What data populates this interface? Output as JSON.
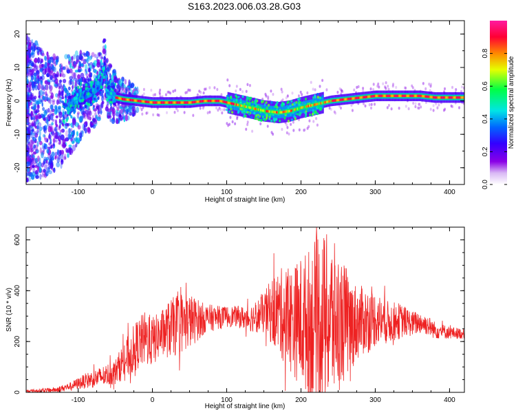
{
  "title": "S163.2023.006.03.28.G03",
  "chart_data": [
    {
      "type": "heatmap",
      "xlabel": "Height of straight line (km)",
      "ylabel": "Frequency (Hz)",
      "xlim": [
        -170,
        420
      ],
      "ylim": [
        -25,
        24
      ],
      "xticks": [
        -100,
        0,
        100,
        200,
        300,
        400
      ],
      "yticks": [
        -20,
        -10,
        0,
        10,
        20
      ],
      "colorbar": {
        "label": "Normalized spectral amplitude",
        "range": [
          0,
          1
        ],
        "ticks": [
          0.0,
          0.2,
          0.4,
          0.6,
          0.8
        ],
        "tick_labels": [
          "0.0",
          "0.2",
          "0.4",
          "0.6",
          "0.8"
        ],
        "colormap": [
          "#ffffff",
          "#d9b8f5",
          "#8a00e6",
          "#3300ff",
          "#0066ff",
          "#00e5e5",
          "#00ff44",
          "#e5ff00",
          "#ff8800",
          "#ff0033",
          "#ff1aa0"
        ]
      },
      "ridge": {
        "x": [
          -165,
          -140,
          -120,
          -100,
          -90,
          -80,
          -70,
          -65,
          -60,
          -50,
          -40,
          -20,
          0,
          20,
          50,
          70,
          90,
          110,
          130,
          150,
          170,
          185,
          200,
          220,
          240,
          260,
          280,
          300,
          330,
          360,
          380,
          420
        ],
        "y": [
          -2,
          -4,
          -3,
          1,
          2,
          3,
          5,
          10,
          3,
          1,
          0.5,
          0,
          -0.5,
          -0.5,
          -0.5,
          0,
          0,
          -1,
          -2,
          -3,
          -3.5,
          -3,
          -2,
          -1,
          0,
          0.5,
          1,
          1.5,
          1.5,
          1.5,
          1,
          1
        ]
      },
      "style": {
        "tick_color": "#000000",
        "grid": false
      }
    },
    {
      "type": "line",
      "xlabel": "Height of straight line (km)",
      "ylabel": "SNR (10 * v/v)",
      "xlim": [
        -170,
        420
      ],
      "ylim": [
        0,
        650
      ],
      "xticks": [
        -100,
        0,
        100,
        200,
        300,
        400
      ],
      "yticks": [
        0,
        200,
        400,
        600
      ],
      "envelope": {
        "x": [
          -170,
          -130,
          -110,
          -90,
          -70,
          -50,
          -40,
          -30,
          -20,
          -10,
          0,
          10,
          20,
          30,
          50,
          70,
          90,
          110,
          130,
          150,
          160,
          170,
          180,
          190,
          200,
          210,
          220,
          230,
          240,
          250,
          260,
          270,
          280,
          290,
          300,
          310,
          320,
          330,
          340,
          350,
          360,
          370,
          380,
          390,
          400,
          420
        ],
        "mean": [
          5,
          10,
          25,
          45,
          60,
          80,
          120,
          150,
          190,
          210,
          200,
          225,
          245,
          260,
          280,
          290,
          295,
          300,
          290,
          310,
          320,
          315,
          300,
          280,
          280,
          275,
          280,
          290,
          285,
          280,
          275,
          270,
          280,
          285,
          290,
          280,
          275,
          280,
          280,
          270,
          275,
          265,
          245,
          240,
          235,
          230
        ],
        "spread": [
          5,
          10,
          15,
          30,
          40,
          50,
          70,
          90,
          100,
          110,
          100,
          90,
          110,
          120,
          110,
          60,
          45,
          40,
          50,
          80,
          130,
          170,
          200,
          220,
          260,
          290,
          330,
          340,
          330,
          280,
          230,
          170,
          140,
          130,
          110,
          95,
          80,
          75,
          60,
          50,
          45,
          40,
          35,
          30,
          25,
          20
        ]
      },
      "series": [
        {
          "color": "#ee2222"
        }
      ],
      "style": {
        "grid": false
      }
    }
  ]
}
